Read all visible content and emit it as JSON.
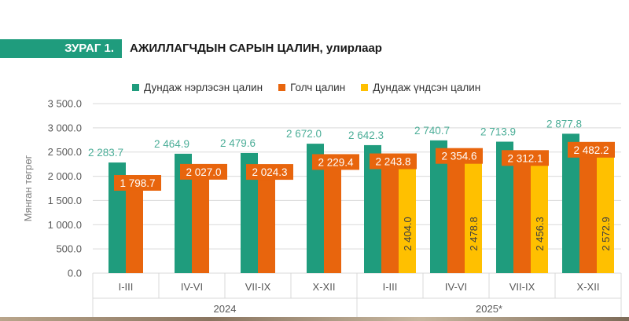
{
  "figure": {
    "label": "ЗУРАГ 1.",
    "title": "АЖИЛЛАГЧДЫН САРЫН ЦАЛИН,",
    "subtitle": "улирлаар"
  },
  "colors": {
    "header_green": "#1f9c7d",
    "series_green": "#1f9c7d",
    "series_orange": "#e8650d",
    "series_yellow": "#ffc000",
    "label_green": "#4cae98",
    "gridline": "#d9d9d9",
    "axis_text": "#595959"
  },
  "chart_data": {
    "type": "bar",
    "title": "АЖИЛЛАГЧДЫН САРЫН ЦАЛИН, улирлаар",
    "ylabel": "Мянган төгрөг",
    "xlabel": "",
    "ylim": [
      0,
      3500
    ],
    "yticks": [
      "0.0",
      "500.0",
      "1 000.0",
      "1 500.0",
      "2 000.0",
      "2 500.0",
      "3 000.0",
      "3 500.0"
    ],
    "ytick_values": [
      0,
      500,
      1000,
      1500,
      2000,
      2500,
      3000,
      3500
    ],
    "categories": [
      "I-III",
      "IV-VI",
      "VII-IX",
      "X-XII",
      "I-III",
      "IV-VI",
      "VII-IX",
      "X-XII"
    ],
    "groups": [
      {
        "label": "2024",
        "start": 0,
        "end": 3
      },
      {
        "label": "2025*",
        "start": 4,
        "end": 7
      }
    ],
    "series": [
      {
        "name": "Дундаж нэрлэсэн цалин",
        "color": "#1f9c7d",
        "values": [
          2283.7,
          2464.9,
          2479.6,
          2672.0,
          2642.3,
          2740.7,
          2713.9,
          2877.8
        ],
        "labels": [
          "2 283.7",
          "2 464.9",
          "2 479.6",
          "2 672.0",
          "2 642.3",
          "2 740.7",
          "2 713.9",
          "2 877.8"
        ]
      },
      {
        "name": "Голч цалин",
        "color": "#e8650d",
        "values": [
          1798.7,
          2027.0,
          2024.3,
          2229.4,
          2243.8,
          2354.6,
          2312.1,
          2482.2
        ],
        "labels": [
          "1 798.7",
          "2 027.0",
          "2 024.3",
          "2 229.4",
          "2 243.8",
          "2 354.6",
          "2 312.1",
          "2 482.2"
        ]
      },
      {
        "name": "Дундаж үндсэн цалин",
        "color": "#ffc000",
        "values": [
          null,
          null,
          null,
          null,
          2404.0,
          2478.8,
          2456.3,
          2572.9
        ],
        "labels": [
          null,
          null,
          null,
          null,
          "2 404.0",
          "2 478.8",
          "2 456.3",
          "2 572.9"
        ]
      }
    ],
    "legend_position": "top",
    "grid": true
  }
}
